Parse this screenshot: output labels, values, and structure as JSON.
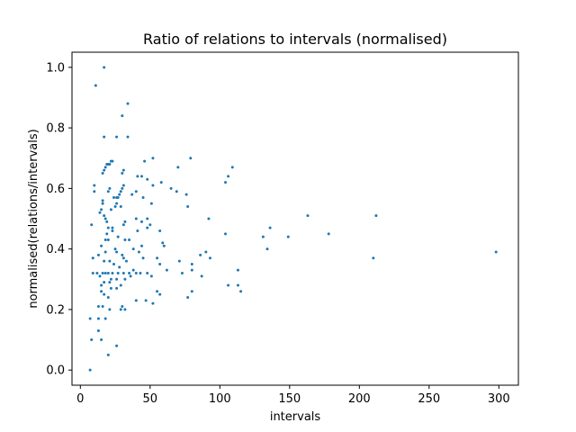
{
  "chart_data": {
    "type": "scatter",
    "title": "Ratio of relations to intervals (normalised)",
    "xlabel": "intervals",
    "ylabel": "normalised(relations/intervals)",
    "xlim": [
      -6,
      314
    ],
    "ylim": [
      -0.05,
      1.05
    ],
    "xticks": [
      0,
      50,
      100,
      150,
      200,
      250,
      300
    ],
    "yticks": [
      0.0,
      0.2,
      0.4,
      0.6,
      0.8,
      1.0
    ],
    "xtick_labels": [
      "0",
      "50",
      "100",
      "150",
      "200",
      "250",
      "300"
    ],
    "ytick_labels": [
      "0.0",
      "0.2",
      "0.4",
      "0.6",
      "0.8",
      "1.0"
    ],
    "grid": false,
    "marker_color": "#1f77b4",
    "series": [
      {
        "points": [
          [
            17,
            1.0
          ],
          [
            11,
            0.94
          ],
          [
            34,
            0.88
          ],
          [
            30,
            0.84
          ],
          [
            17,
            0.77
          ],
          [
            26,
            0.77
          ],
          [
            34,
            0.77
          ],
          [
            79,
            0.7
          ],
          [
            52,
            0.7
          ],
          [
            23,
            0.69
          ],
          [
            22,
            0.69
          ],
          [
            21,
            0.68
          ],
          [
            20,
            0.68
          ],
          [
            19,
            0.68
          ],
          [
            18,
            0.67
          ],
          [
            17,
            0.66
          ],
          [
            16,
            0.65
          ],
          [
            109,
            0.67
          ],
          [
            70,
            0.67
          ],
          [
            31,
            0.66
          ],
          [
            30,
            0.65
          ],
          [
            41,
            0.64
          ],
          [
            44,
            0.64
          ],
          [
            106,
            0.64
          ],
          [
            46,
            0.69
          ],
          [
            48,
            0.63
          ],
          [
            52,
            0.61
          ],
          [
            58,
            0.62
          ],
          [
            65,
            0.6
          ],
          [
            69,
            0.59
          ],
          [
            76,
            0.58
          ],
          [
            104,
            0.62
          ],
          [
            40,
            0.59
          ],
          [
            37,
            0.58
          ],
          [
            21,
            0.6
          ],
          [
            20,
            0.59
          ],
          [
            30,
            0.6
          ],
          [
            31,
            0.61
          ],
          [
            29,
            0.59
          ],
          [
            28,
            0.58
          ],
          [
            27,
            0.57
          ],
          [
            26,
            0.57
          ],
          [
            24,
            0.57
          ],
          [
            45,
            0.57
          ],
          [
            10,
            0.61
          ],
          [
            10,
            0.59
          ],
          [
            16,
            0.56
          ],
          [
            16,
            0.55
          ],
          [
            15,
            0.53
          ],
          [
            14,
            0.52
          ],
          [
            17,
            0.51
          ],
          [
            18,
            0.5
          ],
          [
            19,
            0.49
          ],
          [
            20,
            0.47
          ],
          [
            23,
            0.47
          ],
          [
            22,
            0.53
          ],
          [
            25,
            0.54
          ],
          [
            26,
            0.55
          ],
          [
            29,
            0.54
          ],
          [
            51,
            0.55
          ],
          [
            48,
            0.5
          ],
          [
            40,
            0.5
          ],
          [
            44,
            0.49
          ],
          [
            31,
            0.48
          ],
          [
            32,
            0.49
          ],
          [
            77,
            0.54
          ],
          [
            92,
            0.5
          ],
          [
            163,
            0.51
          ],
          [
            212,
            0.51
          ],
          [
            8,
            0.48
          ],
          [
            19,
            0.45
          ],
          [
            23,
            0.46
          ],
          [
            41,
            0.46
          ],
          [
            27,
            0.44
          ],
          [
            20,
            0.43
          ],
          [
            18,
            0.43
          ],
          [
            32,
            0.43
          ],
          [
            35,
            0.43
          ],
          [
            48,
            0.47
          ],
          [
            50,
            0.48
          ],
          [
            57,
            0.46
          ],
          [
            60,
            0.41
          ],
          [
            59,
            0.42
          ],
          [
            104,
            0.45
          ],
          [
            131,
            0.44
          ],
          [
            136,
            0.47
          ],
          [
            149,
            0.44
          ],
          [
            178,
            0.45
          ],
          [
            134,
            0.4
          ],
          [
            298,
            0.39
          ],
          [
            90,
            0.39
          ],
          [
            86,
            0.38
          ],
          [
            93,
            0.37
          ],
          [
            15,
            0.41
          ],
          [
            13,
            0.38
          ],
          [
            18,
            0.39
          ],
          [
            25,
            0.4
          ],
          [
            26,
            0.39
          ],
          [
            30,
            0.38
          ],
          [
            31,
            0.37
          ],
          [
            38,
            0.4
          ],
          [
            44,
            0.41
          ],
          [
            42,
            0.39
          ],
          [
            9,
            0.37
          ],
          [
            17,
            0.36
          ],
          [
            21,
            0.36
          ],
          [
            24,
            0.35
          ],
          [
            28,
            0.34
          ],
          [
            33,
            0.36
          ],
          [
            38,
            0.33
          ],
          [
            45,
            0.37
          ],
          [
            55,
            0.37
          ],
          [
            57,
            0.35
          ],
          [
            71,
            0.36
          ],
          [
            80,
            0.35
          ],
          [
            210,
            0.37
          ],
          [
            9,
            0.32
          ],
          [
            12,
            0.32
          ],
          [
            16,
            0.32
          ],
          [
            18,
            0.32
          ],
          [
            20,
            0.32
          ],
          [
            23,
            0.32
          ],
          [
            27,
            0.32
          ],
          [
            31,
            0.32
          ],
          [
            35,
            0.32
          ],
          [
            40,
            0.32
          ],
          [
            43,
            0.32
          ],
          [
            48,
            0.32
          ],
          [
            14,
            0.31
          ],
          [
            17,
            0.29
          ],
          [
            15,
            0.28
          ],
          [
            21,
            0.29
          ],
          [
            22,
            0.3
          ],
          [
            26,
            0.3
          ],
          [
            29,
            0.28
          ],
          [
            32,
            0.3
          ],
          [
            36,
            0.31
          ],
          [
            51,
            0.31
          ],
          [
            62,
            0.33
          ],
          [
            73,
            0.32
          ],
          [
            80,
            0.33
          ],
          [
            87,
            0.31
          ],
          [
            113,
            0.33
          ],
          [
            106,
            0.28
          ],
          [
            113,
            0.28
          ],
          [
            115,
            0.26
          ],
          [
            80,
            0.26
          ],
          [
            77,
            0.24
          ],
          [
            15,
            0.26
          ],
          [
            17,
            0.25
          ],
          [
            20,
            0.24
          ],
          [
            22,
            0.27
          ],
          [
            26,
            0.27
          ],
          [
            55,
            0.26
          ],
          [
            57,
            0.25
          ],
          [
            52,
            0.22
          ],
          [
            40,
            0.23
          ],
          [
            47,
            0.23
          ],
          [
            13,
            0.21
          ],
          [
            16,
            0.21
          ],
          [
            21,
            0.2
          ],
          [
            30,
            0.21
          ],
          [
            32,
            0.2
          ],
          [
            29,
            0.2
          ],
          [
            7,
            0.17
          ],
          [
            13,
            0.17
          ],
          [
            18,
            0.17
          ],
          [
            13,
            0.13
          ],
          [
            8,
            0.1
          ],
          [
            15,
            0.1
          ],
          [
            26,
            0.08
          ],
          [
            20,
            0.05
          ],
          [
            7,
            0.0
          ]
        ]
      }
    ]
  }
}
